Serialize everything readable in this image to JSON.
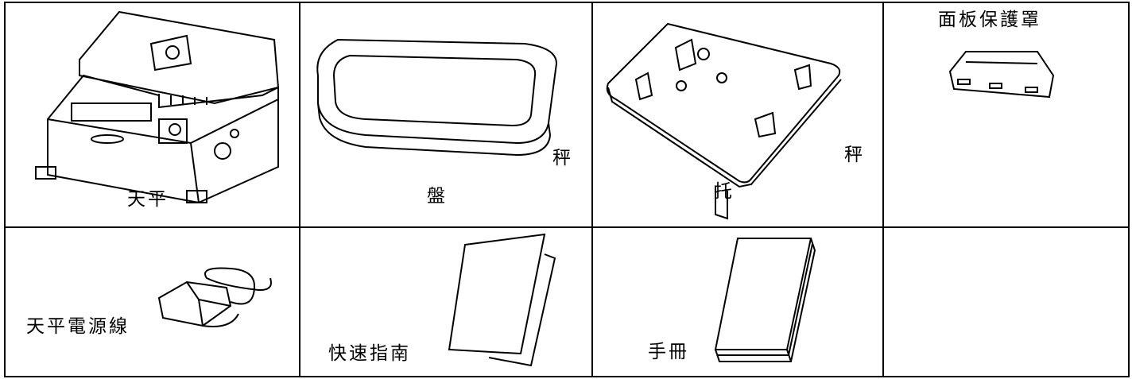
{
  "table": {
    "rows": [
      [
        {
          "label": "天平"
        },
        {
          "label": [
            "秤",
            "盤"
          ]
        },
        {
          "label": [
            "秤",
            "托"
          ]
        },
        {
          "label": "面板保護罩"
        }
      ],
      [
        {
          "label": "天平電源線"
        },
        {
          "label": "快速指南"
        },
        {
          "label": "手冊"
        }
      ]
    ]
  }
}
